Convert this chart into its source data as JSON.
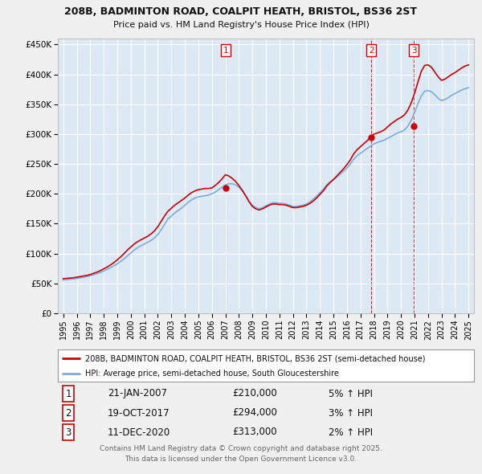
{
  "title_line1": "208B, BADMINTON ROAD, COALPIT HEATH, BRISTOL, BS36 2ST",
  "title_line2": "Price paid vs. HM Land Registry's House Price Index (HPI)",
  "legend_label_red": "208B, BADMINTON ROAD, COALPIT HEATH, BRISTOL, BS36 2ST (semi-detached house)",
  "legend_label_blue": "HPI: Average price, semi-detached house, South Gloucestershire",
  "footer_line1": "Contains HM Land Registry data © Crown copyright and database right 2025.",
  "footer_line2": "This data is licensed under the Open Government Licence v3.0.",
  "transactions": [
    {
      "num": 1,
      "date": "21-JAN-2007",
      "price": "£210,000",
      "pct": "5%",
      "dir": "↑"
    },
    {
      "num": 2,
      "date": "19-OCT-2017",
      "price": "£294,000",
      "pct": "3%",
      "dir": "↑"
    },
    {
      "num": 3,
      "date": "11-DEC-2020",
      "price": "£313,000",
      "pct": "2%",
      "dir": "↑"
    }
  ],
  "transaction_years": [
    2007.05,
    2017.8,
    2020.95
  ],
  "trans_prices": [
    210000,
    294000,
    313000
  ],
  "ylim": [
    0,
    460000
  ],
  "yticks": [
    0,
    50000,
    100000,
    150000,
    200000,
    250000,
    300000,
    350000,
    400000,
    450000
  ],
  "background_color": "#f0f0f0",
  "plot_bg_color": "#dce9f5",
  "red_color": "#cc0000",
  "blue_color": "#7aade0",
  "grid_color": "#ffffff",
  "hpi_x": [
    1995.0,
    1995.25,
    1995.5,
    1995.75,
    1996.0,
    1996.25,
    1996.5,
    1996.75,
    1997.0,
    1997.25,
    1997.5,
    1997.75,
    1998.0,
    1998.25,
    1998.5,
    1998.75,
    1999.0,
    1999.25,
    1999.5,
    1999.75,
    2000.0,
    2000.25,
    2000.5,
    2000.75,
    2001.0,
    2001.25,
    2001.5,
    2001.75,
    2002.0,
    2002.25,
    2002.5,
    2002.75,
    2003.0,
    2003.25,
    2003.5,
    2003.75,
    2004.0,
    2004.25,
    2004.5,
    2004.75,
    2005.0,
    2005.25,
    2005.5,
    2005.75,
    2006.0,
    2006.25,
    2006.5,
    2006.75,
    2007.0,
    2007.25,
    2007.5,
    2007.75,
    2008.0,
    2008.25,
    2008.5,
    2008.75,
    2009.0,
    2009.25,
    2009.5,
    2009.75,
    2010.0,
    2010.25,
    2010.5,
    2010.75,
    2011.0,
    2011.25,
    2011.5,
    2011.75,
    2012.0,
    2012.25,
    2012.5,
    2012.75,
    2013.0,
    2013.25,
    2013.5,
    2013.75,
    2014.0,
    2014.25,
    2014.5,
    2014.75,
    2015.0,
    2015.25,
    2015.5,
    2015.75,
    2016.0,
    2016.25,
    2016.5,
    2016.75,
    2017.0,
    2017.25,
    2017.5,
    2017.75,
    2018.0,
    2018.25,
    2018.5,
    2018.75,
    2019.0,
    2019.25,
    2019.5,
    2019.75,
    2020.0,
    2020.25,
    2020.5,
    2020.75,
    2021.0,
    2021.25,
    2021.5,
    2021.75,
    2022.0,
    2022.25,
    2022.5,
    2022.75,
    2023.0,
    2023.25,
    2023.5,
    2023.75,
    2024.0,
    2024.25,
    2024.5,
    2024.75,
    2025.0
  ],
  "hpi_y": [
    56000,
    56500,
    57000,
    57500,
    58500,
    59500,
    60500,
    61500,
    63000,
    64500,
    66500,
    68500,
    71000,
    73500,
    76500,
    79500,
    83000,
    87000,
    91000,
    96000,
    101000,
    106000,
    110000,
    113000,
    116000,
    119000,
    122000,
    126000,
    132000,
    140000,
    149000,
    158000,
    163000,
    168000,
    172000,
    176000,
    181000,
    186000,
    190000,
    193000,
    195000,
    196000,
    197000,
    198000,
    200000,
    203000,
    207000,
    211000,
    215000,
    217000,
    217000,
    215000,
    211000,
    205000,
    197000,
    188000,
    181000,
    177000,
    175000,
    177000,
    180000,
    183000,
    185000,
    185000,
    184000,
    184000,
    183000,
    181000,
    179000,
    179000,
    180000,
    181000,
    183000,
    186000,
    191000,
    196000,
    202000,
    208000,
    215000,
    220000,
    224000,
    228000,
    233000,
    238000,
    243000,
    250000,
    258000,
    264000,
    268000,
    272000,
    276000,
    280000,
    284000,
    286000,
    288000,
    290000,
    293000,
    296000,
    299000,
    302000,
    304000,
    307000,
    313000,
    323000,
    336000,
    351000,
    364000,
    372000,
    373000,
    371000,
    366000,
    360000,
    356000,
    358000,
    361000,
    365000,
    368000,
    371000,
    374000,
    376000,
    378000
  ],
  "price_x": [
    1995.0,
    1995.25,
    1995.5,
    1995.75,
    1996.0,
    1996.25,
    1996.5,
    1996.75,
    1997.0,
    1997.25,
    1997.5,
    1997.75,
    1998.0,
    1998.25,
    1998.5,
    1998.75,
    1999.0,
    1999.25,
    1999.5,
    1999.75,
    2000.0,
    2000.25,
    2000.5,
    2000.75,
    2001.0,
    2001.25,
    2001.5,
    2001.75,
    2002.0,
    2002.25,
    2002.5,
    2002.75,
    2003.0,
    2003.25,
    2003.5,
    2003.75,
    2004.0,
    2004.25,
    2004.5,
    2004.75,
    2005.0,
    2005.25,
    2005.5,
    2005.75,
    2006.0,
    2006.25,
    2006.5,
    2006.75,
    2007.0,
    2007.25,
    2007.5,
    2007.75,
    2008.0,
    2008.25,
    2008.5,
    2008.75,
    2009.0,
    2009.25,
    2009.5,
    2009.75,
    2010.0,
    2010.25,
    2010.5,
    2010.75,
    2011.0,
    2011.25,
    2011.5,
    2011.75,
    2012.0,
    2012.25,
    2012.5,
    2012.75,
    2013.0,
    2013.25,
    2013.5,
    2013.75,
    2014.0,
    2014.25,
    2014.5,
    2014.75,
    2015.0,
    2015.25,
    2015.5,
    2015.75,
    2016.0,
    2016.25,
    2016.5,
    2016.75,
    2017.0,
    2017.25,
    2017.5,
    2017.75,
    2018.0,
    2018.25,
    2018.5,
    2018.75,
    2019.0,
    2019.25,
    2019.5,
    2019.75,
    2020.0,
    2020.25,
    2020.5,
    2020.75,
    2021.0,
    2021.25,
    2021.5,
    2021.75,
    2022.0,
    2022.25,
    2022.5,
    2022.75,
    2023.0,
    2023.25,
    2023.5,
    2023.75,
    2024.0,
    2024.25,
    2024.5,
    2024.75,
    2025.0
  ],
  "price_y": [
    58000,
    58500,
    59000,
    59500,
    60500,
    61500,
    62500,
    63500,
    65000,
    67000,
    69000,
    71500,
    74500,
    77500,
    81000,
    85000,
    89500,
    94500,
    100000,
    106000,
    111000,
    116000,
    120000,
    123000,
    126000,
    129000,
    133000,
    138000,
    145000,
    154000,
    163000,
    171000,
    176000,
    181000,
    185000,
    189000,
    193000,
    198000,
    202000,
    205000,
    207000,
    208000,
    209000,
    209000,
    210000,
    214000,
    219000,
    225000,
    232000,
    230000,
    226000,
    221000,
    214000,
    206000,
    197000,
    187000,
    179000,
    175000,
    173000,
    175000,
    178000,
    181000,
    183000,
    183000,
    182000,
    182000,
    181000,
    179000,
    177000,
    177000,
    178000,
    179000,
    181000,
    184000,
    188000,
    193000,
    199000,
    205000,
    213000,
    219000,
    224000,
    230000,
    236000,
    242000,
    249000,
    257000,
    267000,
    274000,
    279000,
    284000,
    289000,
    295000,
    300000,
    302000,
    304000,
    307000,
    312000,
    317000,
    321000,
    325000,
    328000,
    332000,
    340000,
    352000,
    368000,
    387000,
    405000,
    415000,
    416000,
    412000,
    404000,
    396000,
    390000,
    392000,
    396000,
    400000,
    403000,
    407000,
    411000,
    414000,
    416000
  ]
}
